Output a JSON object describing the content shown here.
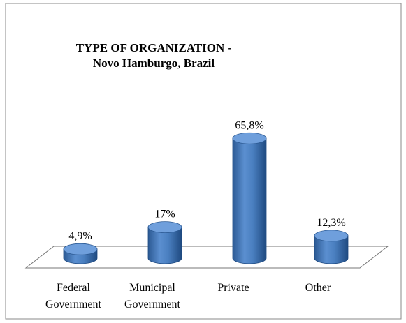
{
  "chart_data": {
    "type": "bar3d",
    "title": "TYPE OF ORGANIZATION - Novo Hamburgo, Brazil",
    "categories": [
      "Federal Government",
      "Municipal Government",
      "Private",
      "Other"
    ],
    "values": [
      4.9,
      17,
      65.8,
      12.3
    ],
    "value_labels": [
      "4,9%",
      "17%",
      "65,8%",
      "12,3%"
    ],
    "color": "#4f81bd"
  }
}
